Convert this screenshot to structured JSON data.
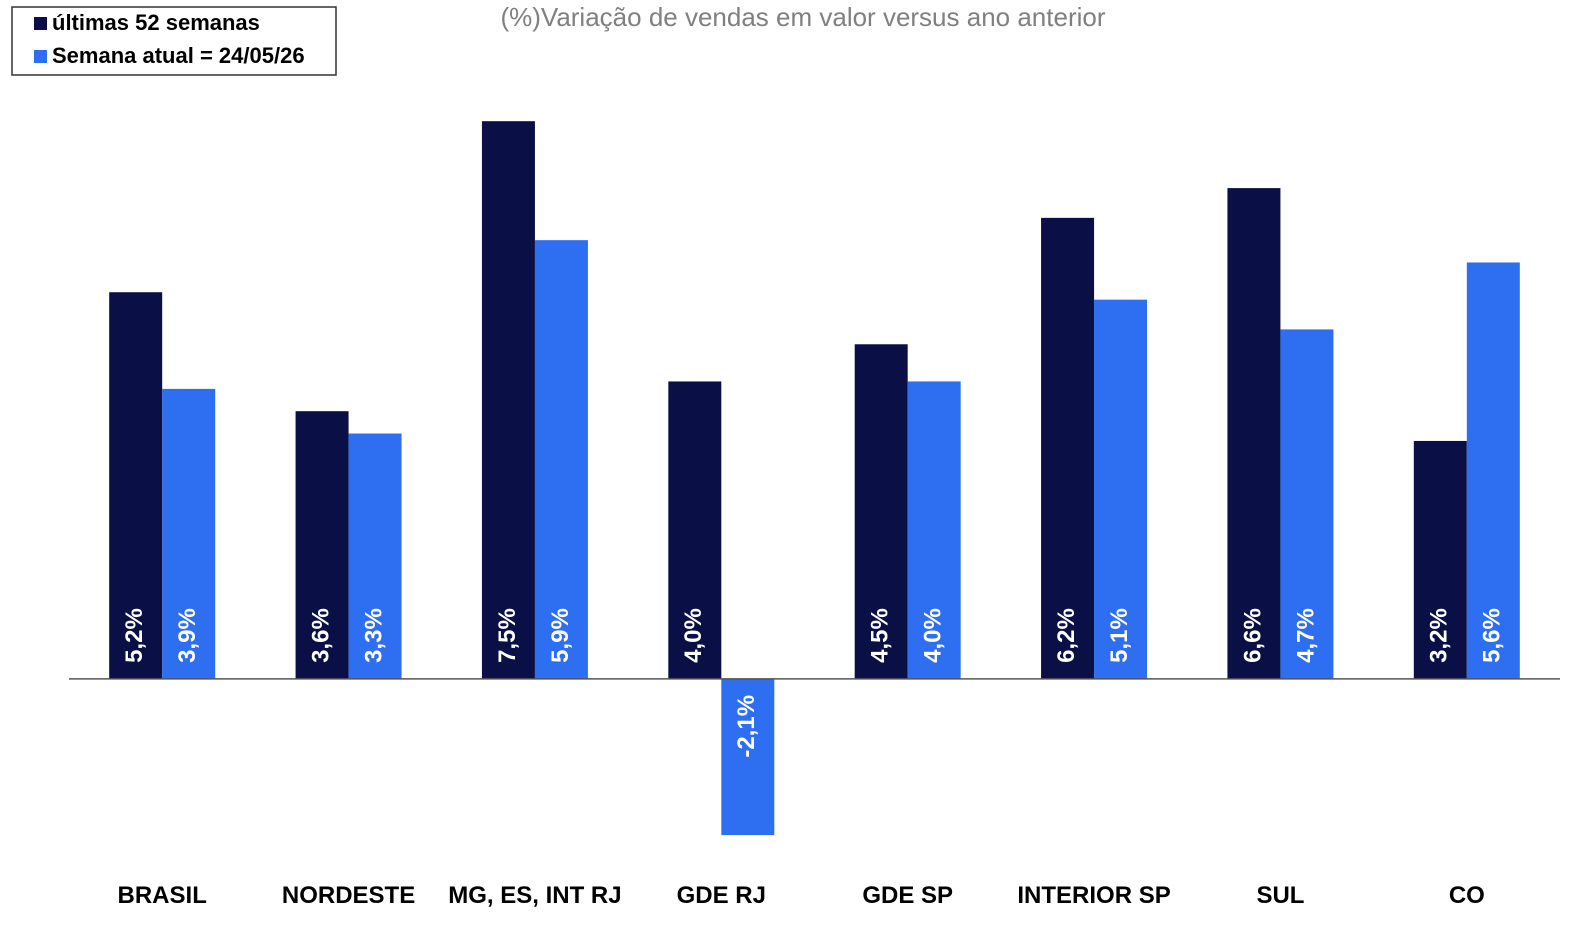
{
  "chart_data": {
    "type": "bar",
    "title": "(%)Variação de vendas em valor versus ano anterior",
    "categories": [
      "BRASIL",
      "NORDESTE",
      "MG, ES, INT RJ",
      "GDE RJ",
      "GDE SP",
      "INTERIOR SP",
      "SUL",
      "CO"
    ],
    "series": [
      {
        "name": "últimas 52 semanas",
        "color": "#0a0f45",
        "values": [
          5.2,
          3.6,
          7.5,
          4.0,
          4.5,
          6.2,
          6.6,
          3.2
        ],
        "value_labels": [
          "5,2%",
          "3,6%",
          "7,5%",
          "4,0%",
          "4,5%",
          "6,2%",
          "6,6%",
          "3,2%"
        ]
      },
      {
        "name": "Semana atual = 24/05/26",
        "color": "#2d6ff0",
        "values": [
          3.9,
          3.3,
          5.9,
          -2.1,
          4.0,
          5.1,
          4.7,
          5.6
        ],
        "value_labels": [
          "3,9%",
          "3,3%",
          "5,9%",
          "-2,1%",
          "4,0%",
          "5,1%",
          "4,7%",
          "5,6%"
        ]
      }
    ],
    "ylim": [
      -3,
      8
    ],
    "legend": "upper left"
  }
}
